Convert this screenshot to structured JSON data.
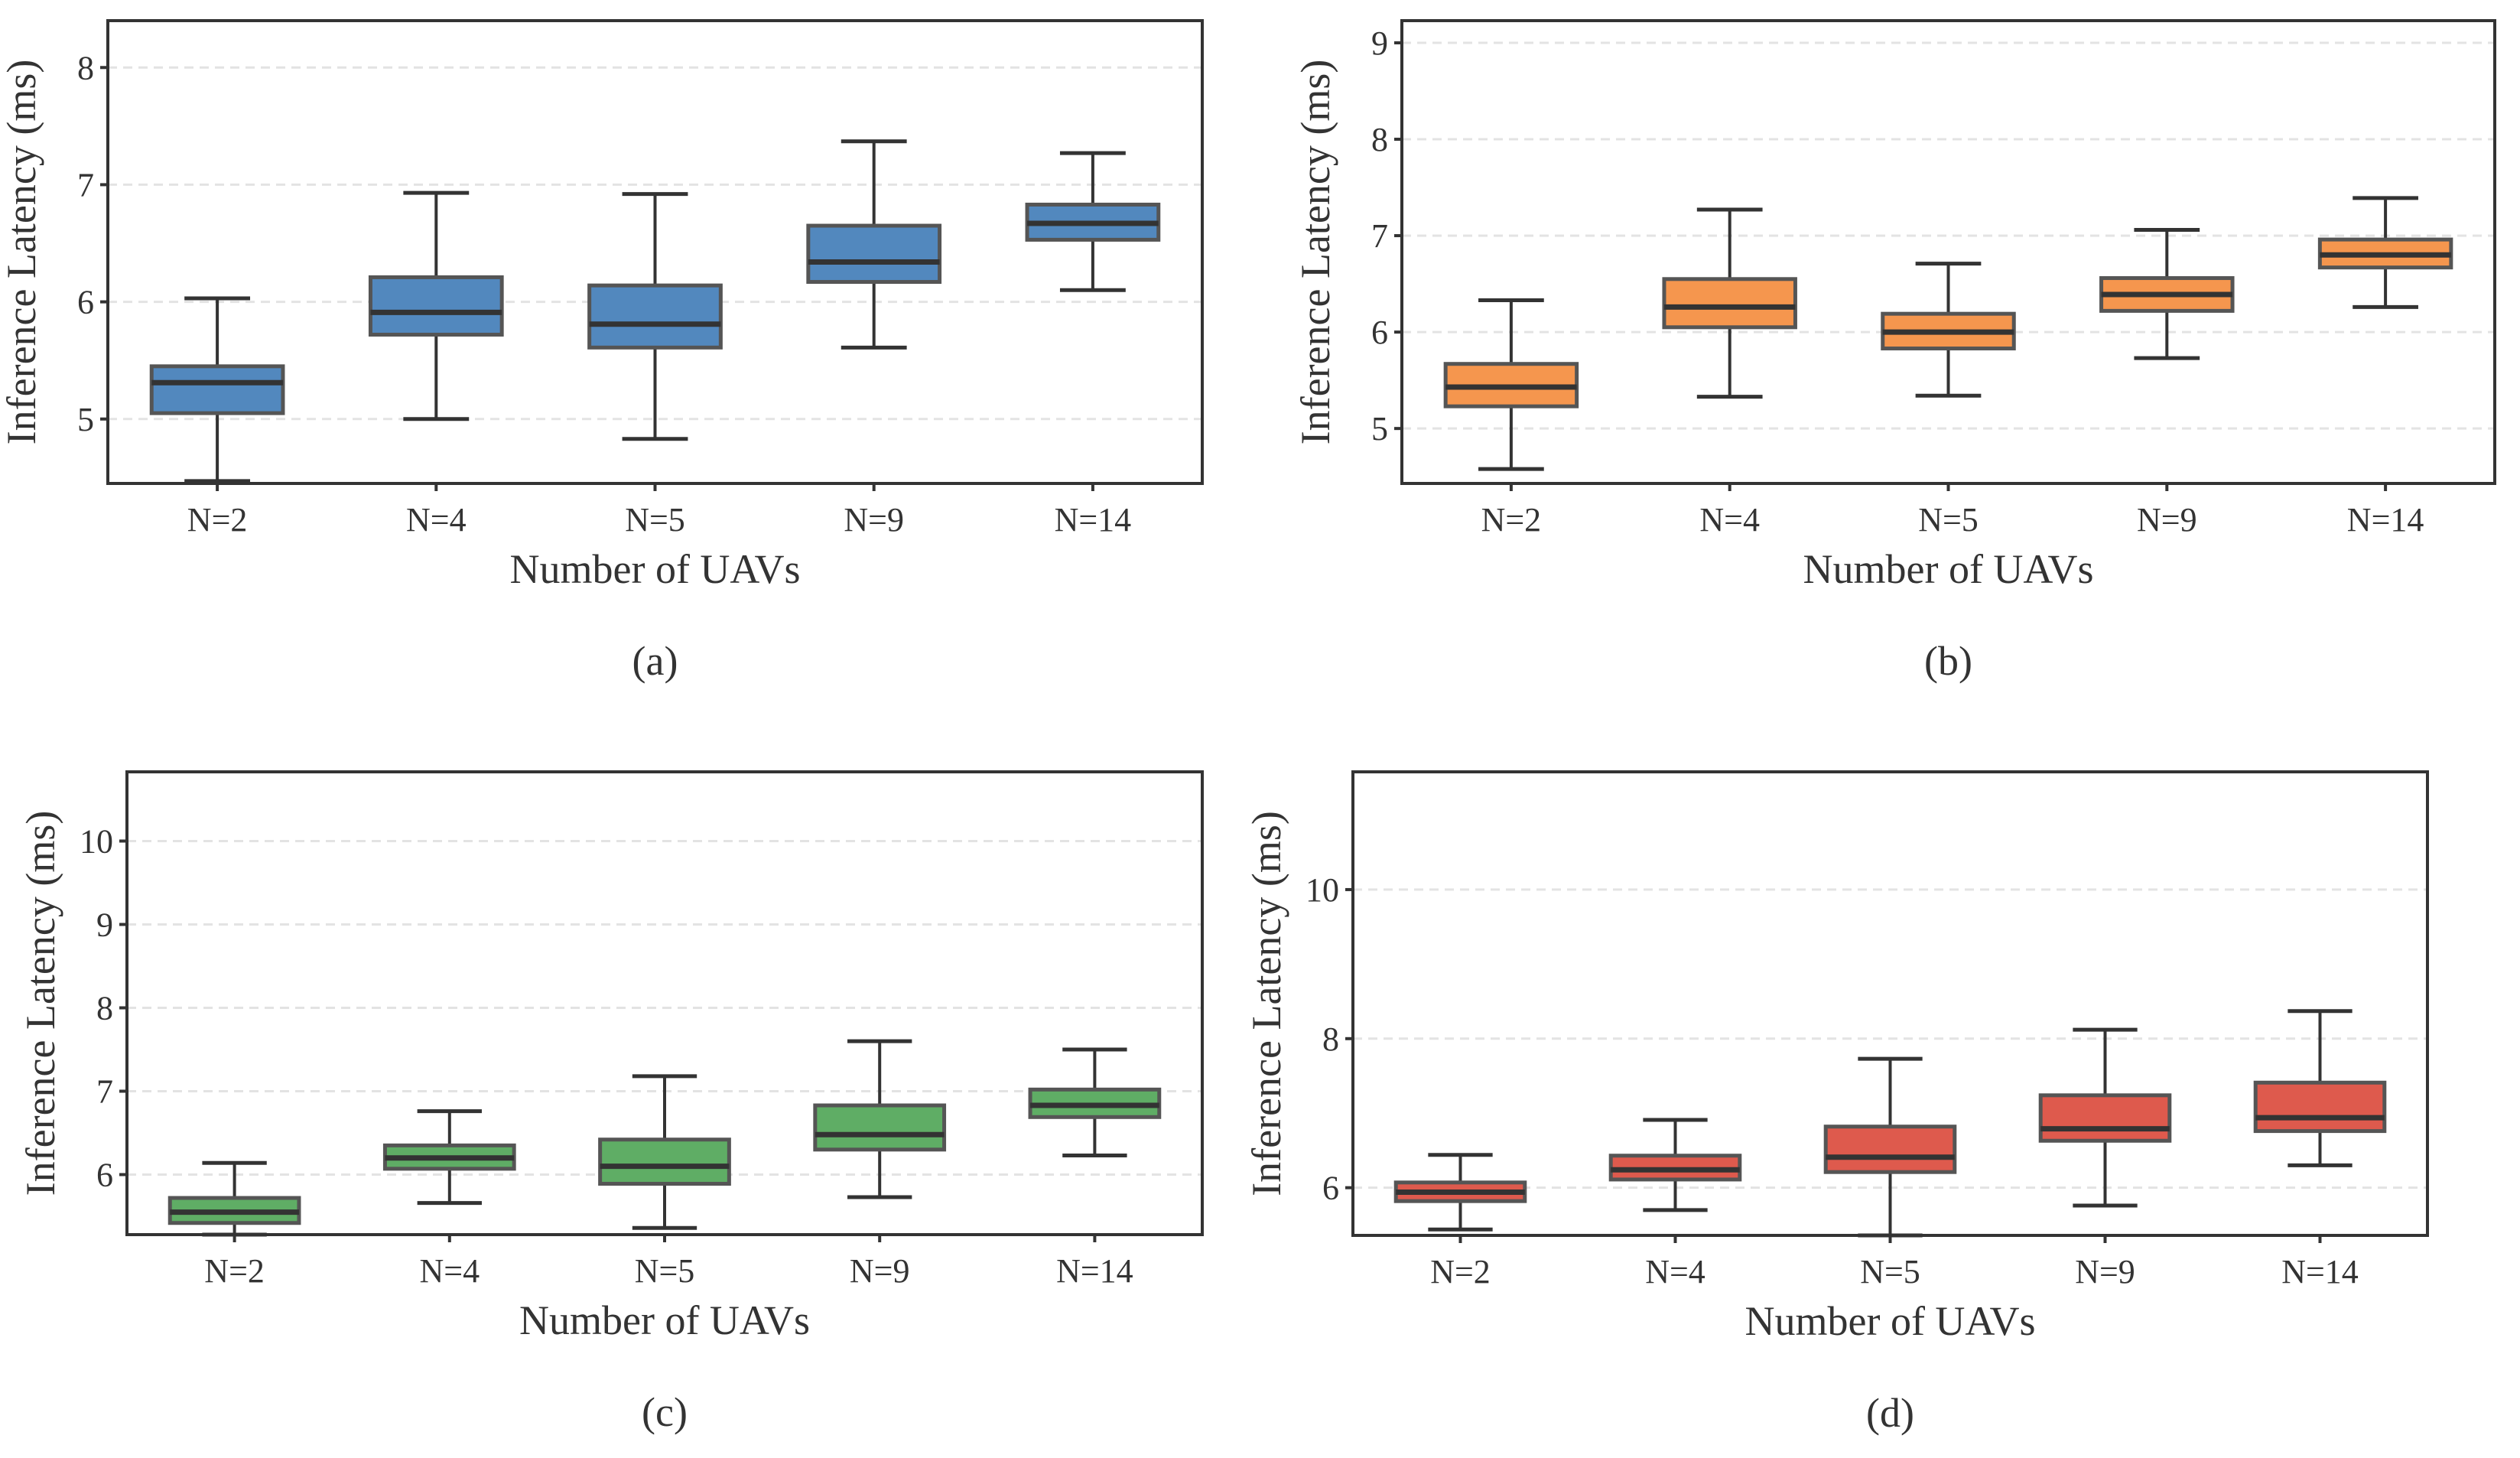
{
  "chart_data": [
    {
      "type": "box",
      "panel": "(a)",
      "caption": "(a)",
      "xlabel": "Number of UAVs",
      "ylabel": "Inference Latency (ms)",
      "categories": [
        "N=2",
        "N=4",
        "N=5",
        "N=9",
        "N=14"
      ],
      "ylim": [
        4.45,
        8.4
      ],
      "yticks": [
        5,
        6,
        7,
        8
      ],
      "grid": "y-dashed",
      "color": "#5288BE",
      "boxes": [
        {
          "whisker_low": 4.47,
          "q1": 5.05,
          "median": 5.31,
          "q3": 5.45,
          "whisker_high": 6.03
        },
        {
          "whisker_low": 5.0,
          "q1": 5.72,
          "median": 5.91,
          "q3": 6.21,
          "whisker_high": 6.93
        },
        {
          "whisker_low": 4.83,
          "q1": 5.61,
          "median": 5.81,
          "q3": 6.14,
          "whisker_high": 6.92
        },
        {
          "whisker_low": 5.61,
          "q1": 6.17,
          "median": 6.34,
          "q3": 6.65,
          "whisker_high": 7.37
        },
        {
          "whisker_low": 6.1,
          "q1": 6.53,
          "median": 6.67,
          "q3": 6.83,
          "whisker_high": 7.27
        }
      ]
    },
    {
      "type": "box",
      "panel": "(b)",
      "caption": "(b)",
      "xlabel": "Number of UAVs",
      "ylabel": "Inference Latency (ms)",
      "categories": [
        "N=2",
        "N=4",
        "N=5",
        "N=9",
        "N=14"
      ],
      "ylim": [
        4.43,
        9.23
      ],
      "yticks": [
        5,
        6,
        7,
        8,
        9
      ],
      "grid": "y-dashed",
      "color": "#F5964E",
      "boxes": [
        {
          "whisker_low": 4.58,
          "q1": 5.23,
          "median": 5.43,
          "q3": 5.67,
          "whisker_high": 6.33
        },
        {
          "whisker_low": 5.33,
          "q1": 6.05,
          "median": 6.26,
          "q3": 6.55,
          "whisker_high": 7.27
        },
        {
          "whisker_low": 5.34,
          "q1": 5.83,
          "median": 6.0,
          "q3": 6.19,
          "whisker_high": 6.71
        },
        {
          "whisker_low": 5.73,
          "q1": 6.22,
          "median": 6.39,
          "q3": 6.56,
          "whisker_high": 7.06
        },
        {
          "whisker_low": 6.26,
          "q1": 6.67,
          "median": 6.8,
          "q3": 6.96,
          "whisker_high": 7.39
        }
      ]
    },
    {
      "type": "box",
      "panel": "(c)",
      "caption": "(c)",
      "xlabel": "Number of UAVs",
      "ylabel": "Inference Latency (ms)",
      "categories": [
        "N=2",
        "N=4",
        "N=5",
        "N=9",
        "N=14"
      ],
      "ylim": [
        5.28,
        10.83
      ],
      "yticks": [
        6,
        7,
        8,
        9,
        10
      ],
      "grid": "y-dashed",
      "color": "#5FAD65",
      "boxes": [
        {
          "whisker_low": 5.28,
          "q1": 5.42,
          "median": 5.55,
          "q3": 5.72,
          "whisker_high": 6.14
        },
        {
          "whisker_low": 5.66,
          "q1": 6.07,
          "median": 6.2,
          "q3": 6.35,
          "whisker_high": 6.76
        },
        {
          "whisker_low": 5.36,
          "q1": 5.89,
          "median": 6.1,
          "q3": 6.42,
          "whisker_high": 7.18
        },
        {
          "whisker_low": 5.73,
          "q1": 6.3,
          "median": 6.48,
          "q3": 6.83,
          "whisker_high": 7.6
        },
        {
          "whisker_low": 6.23,
          "q1": 6.69,
          "median": 6.83,
          "q3": 7.02,
          "whisker_high": 7.5
        }
      ]
    },
    {
      "type": "box",
      "panel": "(d)",
      "caption": "(d)",
      "xlabel": "Number of UAVs",
      "ylabel": "Inference Latency (ms)",
      "categories": [
        "N=2",
        "N=4",
        "N=5",
        "N=9",
        "N=14"
      ],
      "ylim": [
        5.36,
        11.58
      ],
      "yticks": [
        6,
        8,
        10
      ],
      "grid": "y-dashed",
      "color": "#DE5A4D",
      "boxes": [
        {
          "whisker_low": 5.44,
          "q1": 5.82,
          "median": 5.94,
          "q3": 6.07,
          "whisker_high": 6.44
        },
        {
          "whisker_low": 5.7,
          "q1": 6.11,
          "median": 6.24,
          "q3": 6.43,
          "whisker_high": 6.91
        },
        {
          "whisker_low": 5.36,
          "q1": 6.21,
          "median": 6.41,
          "q3": 6.82,
          "whisker_high": 7.73
        },
        {
          "whisker_low": 5.76,
          "q1": 6.63,
          "median": 6.79,
          "q3": 7.24,
          "whisker_high": 8.12
        },
        {
          "whisker_low": 6.3,
          "q1": 6.76,
          "median": 6.94,
          "q3": 7.41,
          "whisker_high": 8.37
        }
      ]
    }
  ]
}
